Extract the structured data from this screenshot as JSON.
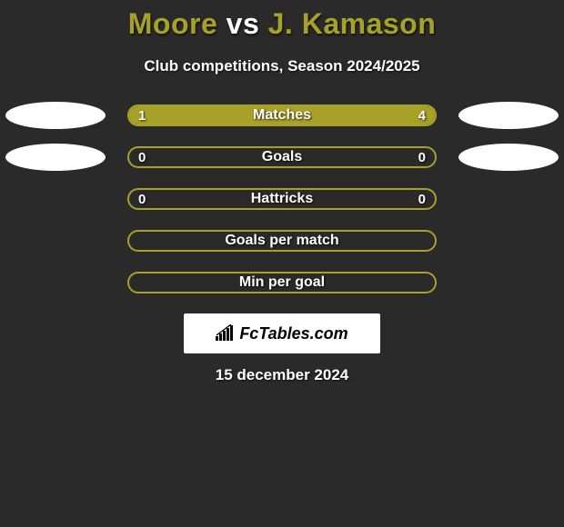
{
  "title": {
    "player1": "Moore",
    "vs": "vs",
    "player2": "J. Kamason",
    "player1_color": "#a7a128",
    "vs_color": "#ffffff",
    "player2_color": "#a7a128"
  },
  "subtitle": "Club competitions, Season 2024/2025",
  "oval_color": "#ffffff",
  "rows": [
    {
      "label": "Matches",
      "left_value": "1",
      "right_value": "4",
      "show_values": true,
      "show_ovals": true,
      "border_color": "#a7a128",
      "left_fill_color": "#a7a128",
      "right_fill_color": "#a7a128",
      "left_pct": 0.2,
      "right_pct": 0.8
    },
    {
      "label": "Goals",
      "left_value": "0",
      "right_value": "0",
      "show_values": true,
      "show_ovals": true,
      "border_color": "#a7a128",
      "left_fill_color": "#a7a128",
      "right_fill_color": "#a7a128",
      "left_pct": 0.0,
      "right_pct": 0.0
    },
    {
      "label": "Hattricks",
      "left_value": "0",
      "right_value": "0",
      "show_values": true,
      "show_ovals": false,
      "border_color": "#a7a128",
      "left_fill_color": "#a7a128",
      "right_fill_color": "#a7a128",
      "left_pct": 0.0,
      "right_pct": 0.0
    },
    {
      "label": "Goals per match",
      "left_value": "",
      "right_value": "",
      "show_values": false,
      "show_ovals": false,
      "border_color": "#a7a128",
      "left_fill_color": "#a7a128",
      "right_fill_color": "#a7a128",
      "left_pct": 0.0,
      "right_pct": 0.0
    },
    {
      "label": "Min per goal",
      "left_value": "",
      "right_value": "",
      "show_values": false,
      "show_ovals": false,
      "border_color": "#a7a128",
      "left_fill_color": "#a7a128",
      "right_fill_color": "#a7a128",
      "left_pct": 0.0,
      "right_pct": 0.0
    }
  ],
  "logo_text": "FcTables.com",
  "date_text": "15 december 2024",
  "background_color": "#2a2a2a",
  "text_color": "#ffffff"
}
